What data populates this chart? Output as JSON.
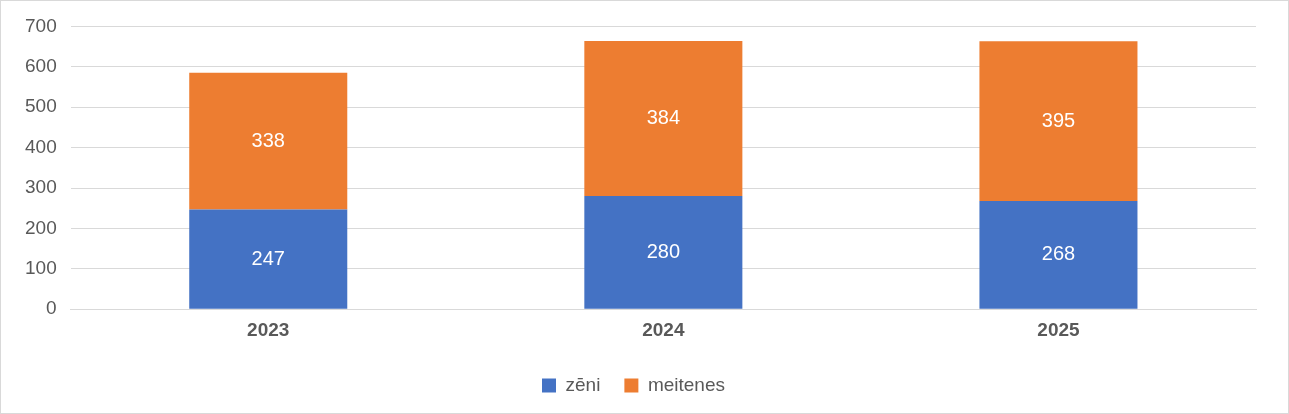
{
  "chart_data": {
    "type": "bar",
    "stacked": true,
    "categories": [
      "2023",
      "2024",
      "2025"
    ],
    "series": [
      {
        "name": "zēni",
        "color": "#4472c4",
        "values": [
          247,
          280,
          268
        ]
      },
      {
        "name": "meitenes",
        "color": "#ed7d31",
        "values": [
          338,
          384,
          395
        ]
      }
    ],
    "ylim": [
      0,
      700
    ],
    "yticks": [
      0,
      100,
      200,
      300,
      400,
      500,
      600,
      700
    ],
    "grid": "y",
    "legend": "bottom",
    "data_labels": true
  }
}
